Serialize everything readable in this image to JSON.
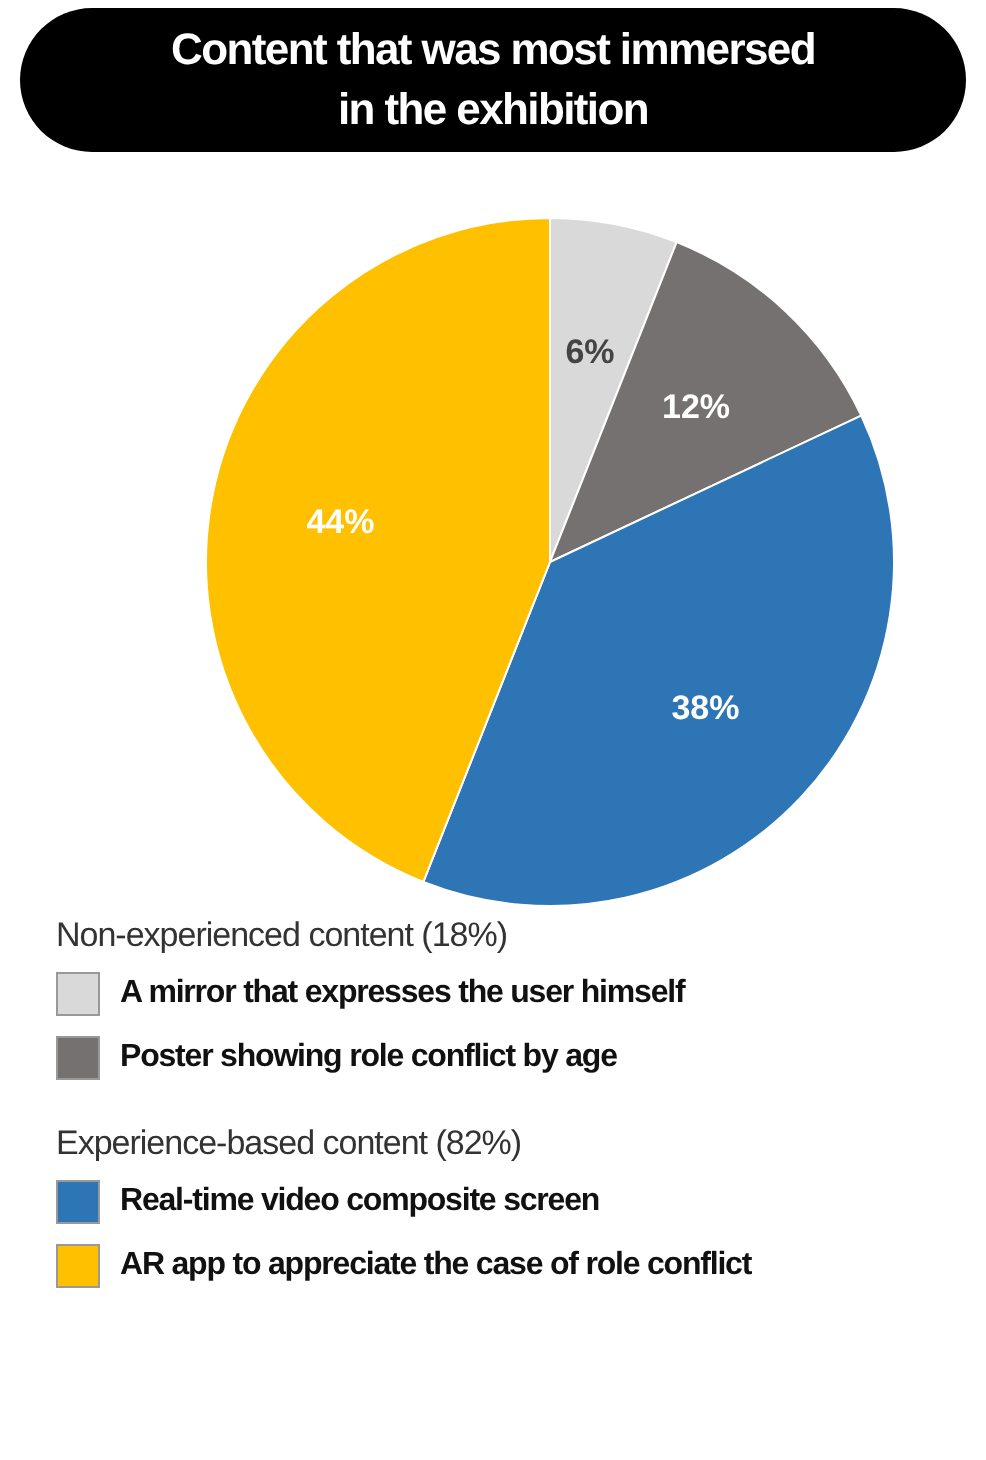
{
  "chart_data": {
    "type": "pie",
    "title": "Content that was most immersed in the exhibition",
    "categories": [
      "A mirror that expresses the user himself",
      "Poster showing role conflict by age",
      "Real-time video composite screen",
      "AR app to appreciate the case of role conflict"
    ],
    "values": [
      6,
      12,
      38,
      44
    ],
    "colors": [
      "#d9d9d9",
      "#767171",
      "#2e75b6",
      "#ffc000"
    ],
    "value_labels": [
      "6%",
      "12%",
      "38%",
      "44%"
    ],
    "legend": "bottom",
    "annotations": [
      "Non-experienced content (18%)",
      "Experience-based content (82%)"
    ]
  }
}
